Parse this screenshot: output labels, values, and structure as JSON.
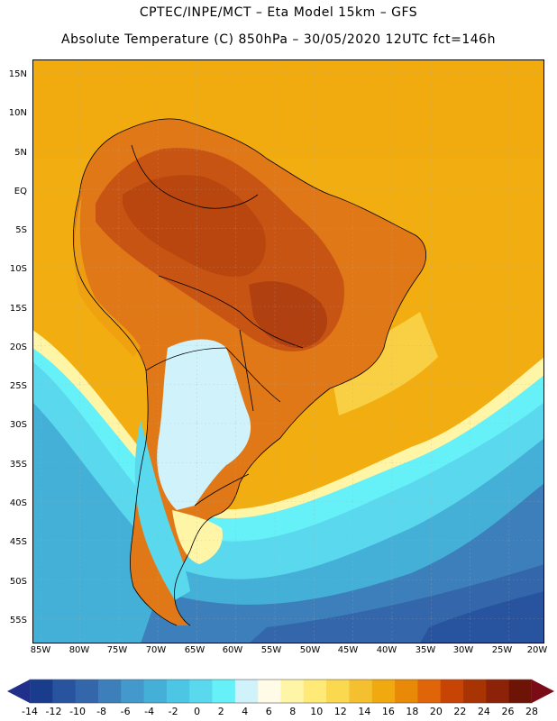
{
  "title": {
    "line1": "CPTEC/INPE/MCT –  Eta Model 15km – GFS",
    "line2": "Absolute Temperature (C) 850hPa – 30/05/2020 12UTC fct=146h"
  },
  "axes": {
    "lat_labels": [
      "15N",
      "10N",
      "5N",
      "EQ",
      "5S",
      "10S",
      "15S",
      "20S",
      "25S",
      "30S",
      "35S",
      "40S",
      "45S",
      "50S",
      "55S"
    ],
    "lon_labels": [
      "85W",
      "80W",
      "75W",
      "70W",
      "65W",
      "60W",
      "55W",
      "50W",
      "45W",
      "40W",
      "35W",
      "30W",
      "25W",
      "20W"
    ]
  },
  "colorbar": {
    "labels": [
      "-14",
      "-12",
      "-10",
      "-8",
      "-6",
      "-4",
      "-2",
      "0",
      "2",
      "4",
      "6",
      "8",
      "10",
      "12",
      "14",
      "16",
      "18",
      "20",
      "22",
      "24",
      "26",
      "28"
    ],
    "colors": [
      "#1a3c8c",
      "#28539e",
      "#3366aa",
      "#3d7fbb",
      "#4499cc",
      "#44b0d8",
      "#4cc6e4",
      "#5ad8ee",
      "#66f0f8",
      "#d0f2fa",
      "#fffbe6",
      "#fff5a6",
      "#ffea78",
      "#fad850",
      "#f5c030",
      "#f0aa10",
      "#e88a08",
      "#e06408",
      "#c84404",
      "#a83404",
      "#8c2208",
      "#6e1406"
    ],
    "under_color": "#20308a",
    "over_color": "#7a0c18"
  },
  "map": {
    "field": "Absolute Temperature (C) 850hPa",
    "region": "South America",
    "ocean_color": "#f2ae10",
    "warm_land_color": "#d66418",
    "hot_core_color": "#b8460e",
    "cold_south_color": "#44b2dc"
  }
}
